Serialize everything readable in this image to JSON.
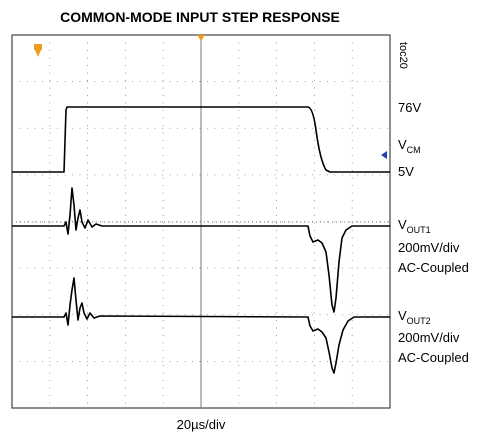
{
  "title": "COMMON-MODE INPUT STEP RESPONSE",
  "toc": "toc20",
  "timebase": "20µs/div",
  "labels": {
    "vcm_high": "76V",
    "vcm": {
      "main": "V",
      "sub": "CM"
    },
    "vcm_low": "5V",
    "vout1": {
      "main": "V",
      "sub": "OUT1",
      "scale": "200mV/div",
      "coupling": "AC-Coupled"
    },
    "vout2": {
      "main": "V",
      "sub": "OUT2",
      "scale": "200mV/div",
      "coupling": "AC-Coupled"
    }
  }
}
